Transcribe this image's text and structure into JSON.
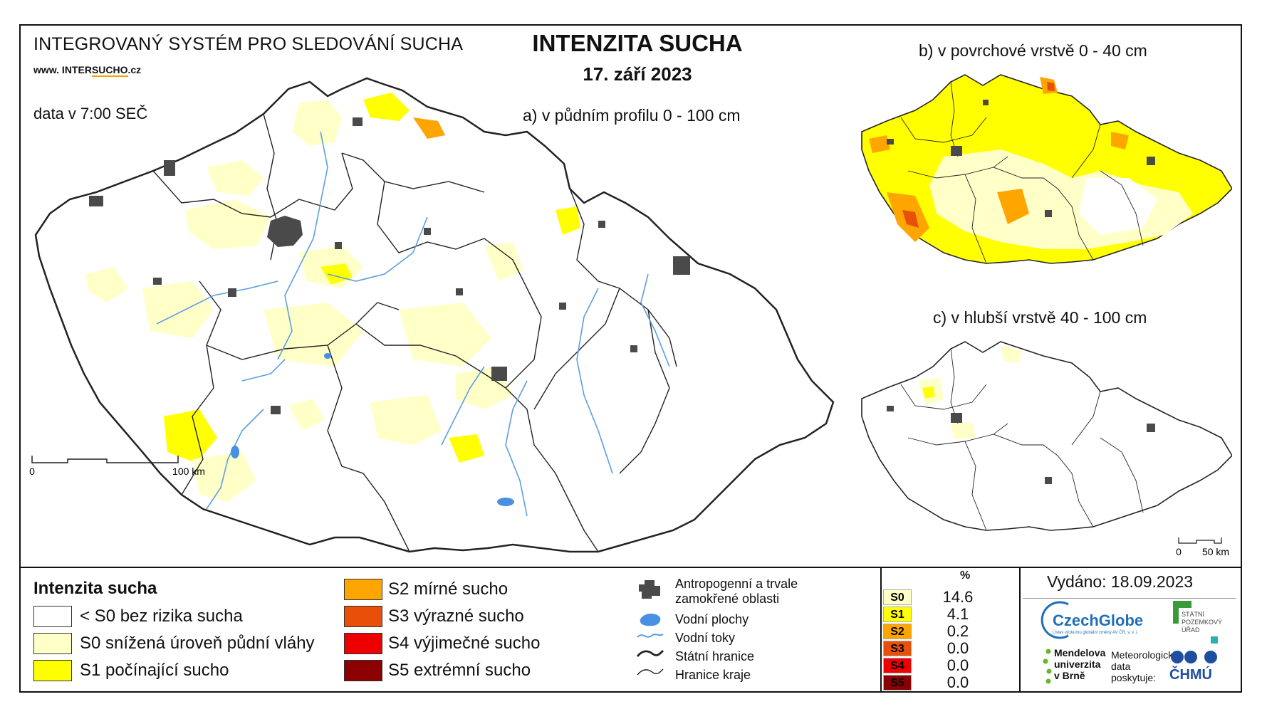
{
  "header": {
    "system_title": "INTEGROVANÝ SYSTÉM PRO SLEDOVÁNÍ SUCHA",
    "website_prefix": "www. INTER",
    "website_accent": "SUCHO",
    "website_suffix": ".cz",
    "data_time": "data v 7:00 SEČ",
    "main_title": "INTENZITA SUCHA",
    "date": "17. září 2023"
  },
  "maps": {
    "a_label": "a) v půdním profilu 0 - 100 cm",
    "b_label": "b) v povrchové vrstvě 0 - 40 cm",
    "c_label": "c) v hlubší vrstvě 40 - 100 cm",
    "scale_a": {
      "zero": "0",
      "end": "100 km"
    },
    "scale_c": {
      "zero": "0",
      "end": "50 km"
    }
  },
  "legend": {
    "title": "Intenzita sucha",
    "classes": [
      {
        "label": "< S0 bez rizika sucha",
        "color": "#ffffff"
      },
      {
        "label": "S0 snížená úroveň půdní vláhy",
        "color": "#ffffc8"
      },
      {
        "label": "S1 počínající sucho",
        "color": "#ffff00"
      },
      {
        "label": "S2 mírné sucho",
        "color": "#ffa500"
      },
      {
        "label": "S3 výrazné sucho",
        "color": "#e8500a"
      },
      {
        "label": "S4 výjimečné sucho",
        "color": "#ee0000"
      },
      {
        "label": "S5 extrémní sucho",
        "color": "#8b0000"
      }
    ],
    "symbols": [
      {
        "label": "Antropogenní a trvale zamokřené oblasti",
        "icon": "urban-area-icon"
      },
      {
        "label": "Vodní plochy",
        "icon": "water-body-icon"
      },
      {
        "label": "Vodní toky",
        "icon": "river-icon"
      },
      {
        "label": "Státní hranice",
        "icon": "state-border-icon"
      },
      {
        "label": "Hranice kraje",
        "icon": "region-border-icon"
      }
    ]
  },
  "stats": {
    "header": "%",
    "rows": [
      {
        "code": "S0",
        "value": "14.6",
        "color": "#ffffc8",
        "text_color": "#000000"
      },
      {
        "code": "S1",
        "value": "4.1",
        "color": "#ffff00",
        "text_color": "#000000"
      },
      {
        "code": "S2",
        "value": "0.2",
        "color": "#ffa500",
        "text_color": "#000000"
      },
      {
        "code": "S3",
        "value": "0.0",
        "color": "#e8500a",
        "text_color": "#000000"
      },
      {
        "code": "S4",
        "value": "0.0",
        "color": "#ee0000",
        "text_color": "#000000"
      },
      {
        "code": "S5",
        "value": "0.0",
        "color": "#8b0000",
        "text_color": "#000000"
      }
    ]
  },
  "footer": {
    "issued": "Vydáno: 18.09.2023",
    "czechglobe": "CzechGlobe",
    "czechglobe_sub": "Ústav výzkumu globální změny AV ČR, v. v. i.",
    "spu": [
      "STÁTNÍ",
      "POZEMKOVÝ",
      "ÚŘAD"
    ],
    "mendelu": [
      "Mendelova",
      "univerzita",
      "v Brně"
    ],
    "meteo": [
      "Meteorologická",
      "data",
      "poskytuje:"
    ],
    "chmu": "ČHMÚ"
  }
}
